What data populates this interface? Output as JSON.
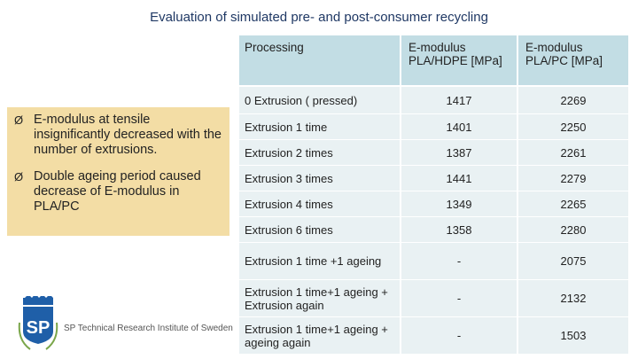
{
  "slide": {
    "title": "Evaluation of simulated pre- and post-consumer recycling"
  },
  "bullets": [
    {
      "mark": "Ø",
      "text": "E-modulus at tensile insignificantly decreased with the number of extrusions."
    },
    {
      "mark": "Ø",
      "text": "Double ageing period caused decrease of E-modulus in PLA/PC"
    }
  ],
  "table": {
    "headers": [
      "Processing",
      "E-modulus PLA/HDPE [MPa]",
      "E-modulus PLA/PC [MPa]"
    ],
    "rows": [
      {
        "processing": "0 Extrusion  ( pressed)",
        "hdpe": "1417",
        "pc": "2269"
      },
      {
        "processing": "Extrusion 1 time",
        "hdpe": "1401",
        "pc": "2250"
      },
      {
        "processing": "Extrusion 2 times",
        "hdpe": "1387",
        "pc": "2261"
      },
      {
        "processing": "Extrusion 3 times",
        "hdpe": "1441",
        "pc": "2279"
      },
      {
        "processing": "Extrusion 4 times",
        "hdpe": "1349",
        "pc": "2265"
      },
      {
        "processing": "Extrusion 6 times",
        "hdpe": "1358",
        "pc": "2280"
      },
      {
        "processing": " Extrusion 1 time +1 ageing",
        "hdpe": "-",
        "pc": "2075"
      },
      {
        "processing": " Extrusion 1 time+1 ageing + Extrusion again",
        "hdpe": "-",
        "pc": "2132"
      },
      {
        "processing": "Extrusion 1 time+1 ageing + ageing again",
        "hdpe": "-",
        "pc": "1503"
      }
    ]
  },
  "logo": {
    "initials": "SP",
    "text": "SP Technical Research Institute of Sweden",
    "colors": {
      "primary": "#1f5fa8"
    }
  },
  "theme": {
    "accent": "#c2dde4",
    "row_bg": "#e9f1f3",
    "bullet_bg": "#f3dda5",
    "title_color": "#1f3864"
  }
}
